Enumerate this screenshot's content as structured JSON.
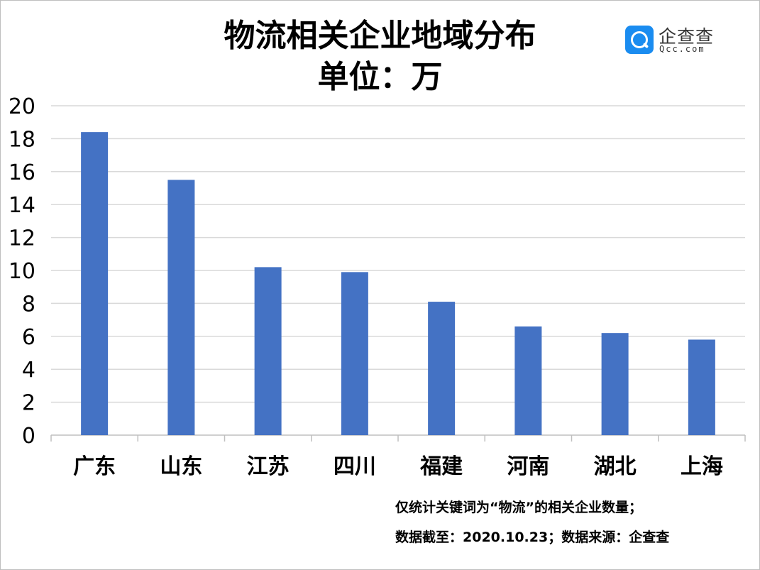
{
  "title_line1": "物流相关企业地域分布",
  "title_line2": "单位：万",
  "logo": {
    "name": "企查查",
    "domain": "Qcc.com",
    "color": "#1a8cf0",
    "icon": "magnifier-q-icon"
  },
  "footnote_line1": "仅统计关键词为“物流”的相关企业数量；",
  "footnote_line2": "数据截至：2020.10.23；数据来源：企查查",
  "chart_data": {
    "type": "bar",
    "categories": [
      "广东",
      "山东",
      "江苏",
      "四川",
      "福建",
      "河南",
      "湖北",
      "上海"
    ],
    "values": [
      18.4,
      15.5,
      10.2,
      9.9,
      8.1,
      6.6,
      6.2,
      5.8
    ],
    "ylim": [
      0,
      20
    ],
    "yticks": [
      "0",
      "2",
      "4",
      "6",
      "8",
      "10",
      "12",
      "14",
      "16",
      "18",
      "20"
    ],
    "grid": true,
    "bar_color": "#4472c4"
  }
}
